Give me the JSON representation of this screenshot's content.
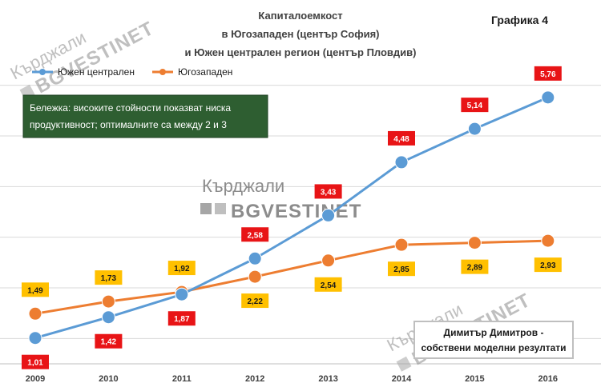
{
  "header": {
    "title_lines": [
      "Капиталоемкост",
      "в Югозападен  (център София)",
      "и Южен централен регион (център Пловдив)"
    ],
    "graph_label": "Графика 4"
  },
  "note": {
    "lines": [
      "Бележка: високите стойности показват ниска",
      "продуктивност; оптималните са между 2 и 3"
    ]
  },
  "author": {
    "lines": [
      "Димитър Димитров -",
      "собствени моделни резултати"
    ]
  },
  "watermark": {
    "brand": "Кърджали",
    "logo": "BGVESTINET"
  },
  "colors": {
    "series_south_central": "#5b9bd5",
    "series_southwest": "#ed7d31",
    "label_red": "#e81416",
    "label_yellow": "#ffc000",
    "note_bg": "#2e5e31",
    "grid": "#d9d9d9"
  },
  "chart_data": {
    "type": "line",
    "categories": [
      "2009",
      "2010",
      "2011",
      "2012",
      "2013",
      "2014",
      "2015",
      "2016"
    ],
    "series": [
      {
        "name": "Южен централен",
        "values": [
          1.01,
          1.42,
          1.87,
          2.58,
          3.43,
          4.48,
          5.14,
          5.76
        ],
        "labels": [
          "1,01",
          "1,42",
          "1,87",
          "2,58",
          "3,43",
          "4,48",
          "5,14",
          "5,76"
        ]
      },
      {
        "name": "Югозападен",
        "values": [
          1.49,
          1.73,
          1.92,
          2.22,
          2.54,
          2.85,
          2.89,
          2.93
        ],
        "labels": [
          "1,49",
          "1,73",
          "1,92",
          "2,22",
          "2,54",
          "2,85",
          "2,89",
          "2,93"
        ]
      }
    ],
    "ylim": [
      0.5,
      6.5
    ],
    "grid": true,
    "legend_position": "top-left"
  }
}
